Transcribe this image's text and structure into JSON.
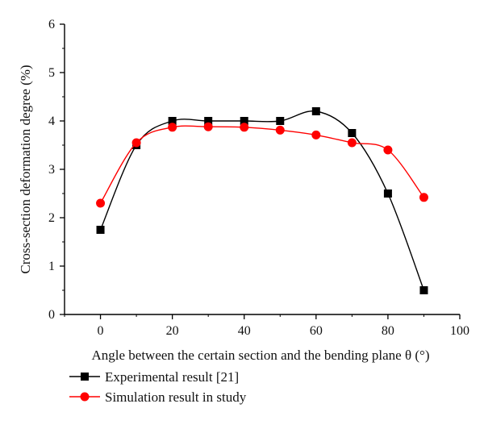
{
  "chart_data": {
    "type": "line",
    "title": "",
    "xlabel": "Angle between the certain section and the bending plane θ (°)",
    "ylabel": "Cross-section deformation degree (%)",
    "xlim": [
      -10,
      100
    ],
    "ylim": [
      0,
      6
    ],
    "xticks": [
      0,
      20,
      40,
      60,
      80,
      100
    ],
    "yticks": [
      0,
      1,
      2,
      3,
      4,
      5,
      6
    ],
    "grid": false,
    "legend_position": "bottom-left, below plot",
    "series": [
      {
        "name": "Experimental result [21]",
        "marker": "square",
        "color": "#000000",
        "smooth": true,
        "x": [
          0,
          10,
          20,
          30,
          40,
          50,
          60,
          70,
          80,
          90
        ],
        "y": [
          1.75,
          3.5,
          4.0,
          4.0,
          4.0,
          4.0,
          4.2,
          3.75,
          2.5,
          0.5
        ]
      },
      {
        "name": "Simulation result in study",
        "marker": "circle",
        "color": "#ff0000",
        "smooth": true,
        "x": [
          0,
          10,
          20,
          30,
          40,
          50,
          60,
          70,
          80,
          90
        ],
        "y": [
          2.3,
          3.55,
          3.87,
          3.88,
          3.87,
          3.81,
          3.71,
          3.55,
          3.4,
          2.42
        ]
      }
    ]
  }
}
